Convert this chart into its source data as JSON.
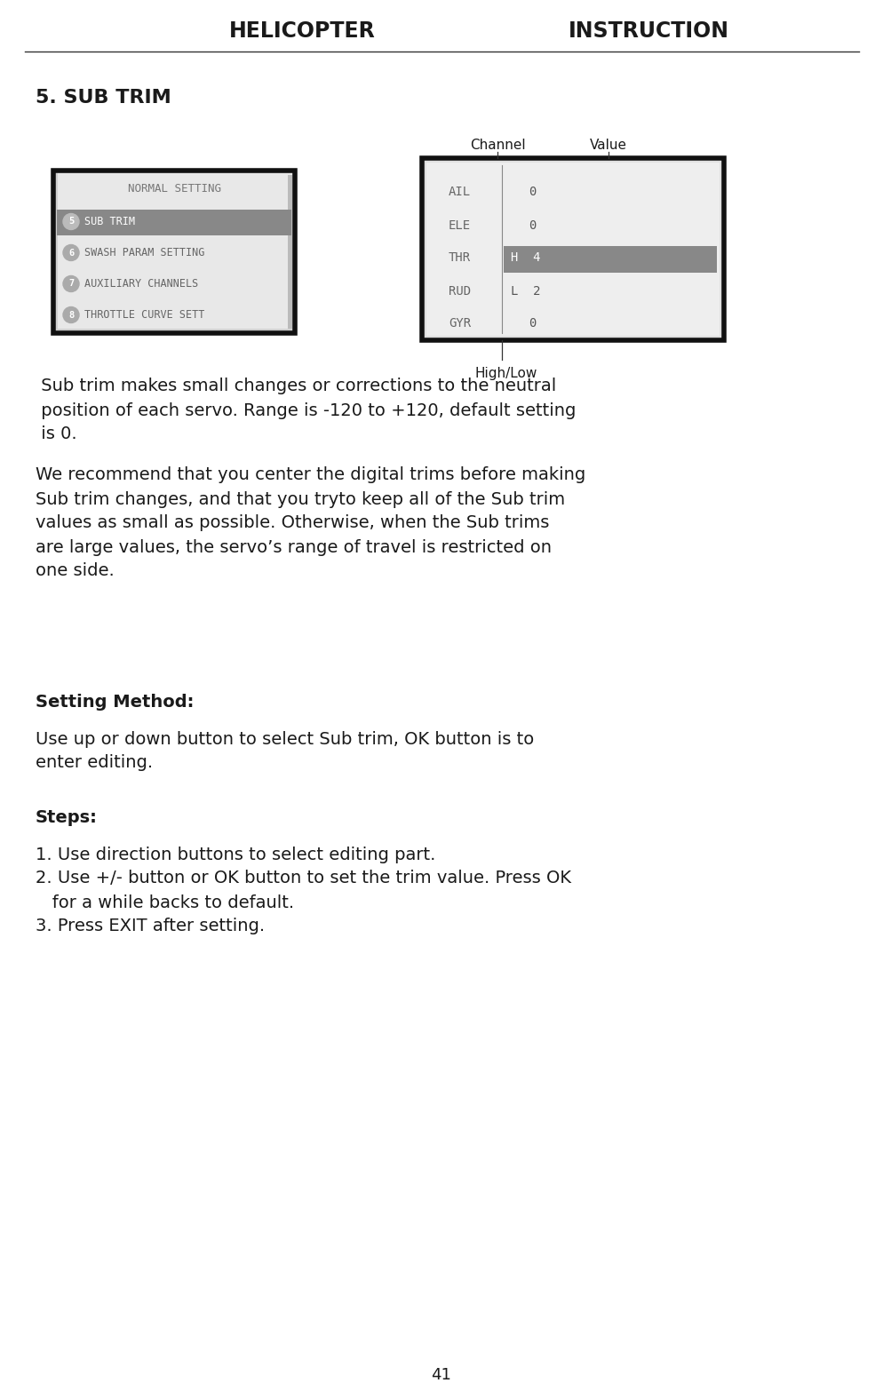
{
  "title_helicopter": "HELICOPTER",
  "title_instruction": "INSTRUCTION",
  "section_title": "5. SUB TRIM",
  "body_text1_lines": [
    " Sub trim makes small changes or corrections to the neutral",
    " position of each servo. Range is -120 to +120, default setting",
    " is 0."
  ],
  "body_text2_lines": [
    "We recommend that you center the digital trims before making",
    "Sub trim changes, and that you tryto keep all of the Sub trim",
    "values as small as possible. Otherwise, when the Sub trims",
    "are large values, the servo’s range of travel is restricted on",
    "one side."
  ],
  "setting_method_title": "Setting Method:",
  "setting_method_lines": [
    "Use up or down button to select Sub trim, OK button is to",
    "enter editing."
  ],
  "steps_title": "Steps:",
  "step1": "1. Use direction buttons to select editing part.",
  "step2a": "2. Use +/- button or OK button to set the trim value. Press OK",
  "step2b": "   for a while backs to default.",
  "step3": "3. Press EXIT after setting.",
  "page_number": "41",
  "left_screen_title": "NORMAL SETTING",
  "left_screen_items": [
    {
      "num": "5",
      "text": "SUB TRIM",
      "highlighted": true
    },
    {
      "num": "6",
      "text": "SWASH PARAM SETTING",
      "highlighted": false
    },
    {
      "num": "7",
      "text": "AUXILIARY CHANNELS",
      "highlighted": false
    },
    {
      "num": "8",
      "text": "THROTTLE CURVE SETT",
      "highlighted": false
    }
  ],
  "right_screen_label_channel": "Channel",
  "right_screen_label_value": "Value",
  "right_screen_label_highlow": "High/Low",
  "right_screen_rows": [
    {
      "channel": "AIL",
      "hl": "",
      "value": "0",
      "highlighted": false
    },
    {
      "channel": "ELE",
      "hl": "",
      "value": "0",
      "highlighted": false
    },
    {
      "channel": "THR",
      "hl": "H",
      "value": "4",
      "highlighted": true
    },
    {
      "channel": "RUD",
      "hl": "L",
      "value": "2",
      "highlighted": false
    },
    {
      "channel": "GYR",
      "hl": "",
      "value": "0",
      "highlighted": false
    }
  ],
  "bg_color": "#ffffff",
  "text_color": "#1a1a1a",
  "screen_bg_left": "#d0d0d0",
  "screen_bg_right": "#e0e0e0",
  "screen_border": "#111111",
  "highlight_bg": "#888888",
  "highlight_text": "#ffffff",
  "mono_color": "#555555",
  "separator_color": "#888888",
  "header_line_color": "#333333"
}
